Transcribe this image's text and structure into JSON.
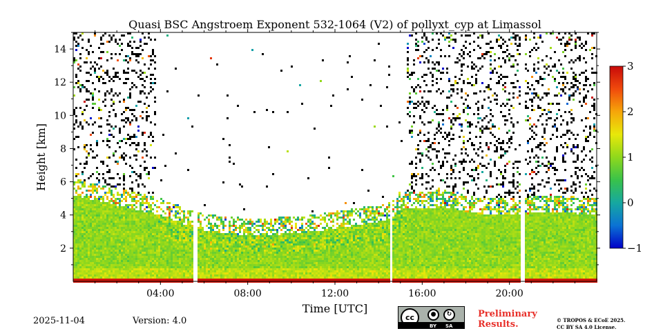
{
  "chart_data": {
    "type": "heatmap",
    "title": "Quasi BSC Angstroem Exponent 532-1064 (V2) of pollyxt_cyp at Limassol",
    "xlabel": "Time [UTC]",
    "ylabel": "Height [km]",
    "xlim_hours": [
      0,
      24
    ],
    "ylim_km": [
      0,
      15
    ],
    "x_ticks": [
      {
        "value": 4,
        "label": "04:00"
      },
      {
        "value": 8,
        "label": "08:00"
      },
      {
        "value": 12,
        "label": "12:00"
      },
      {
        "value": 16,
        "label": "16:00"
      },
      {
        "value": 20,
        "label": "20:00"
      }
    ],
    "y_ticks": [
      {
        "value": 2,
        "label": "2"
      },
      {
        "value": 4,
        "label": "4"
      },
      {
        "value": 6,
        "label": "6"
      },
      {
        "value": 8,
        "label": "8"
      },
      {
        "value": 10,
        "label": "10"
      },
      {
        "value": 12,
        "label": "12"
      },
      {
        "value": 14,
        "label": "14"
      }
    ],
    "colorbar": {
      "range": [
        -1,
        3
      ],
      "ticks": [
        {
          "value": -1,
          "label": "−1"
        },
        {
          "value": 0,
          "label": "0"
        },
        {
          "value": 1,
          "label": "1"
        },
        {
          "value": 2,
          "label": "2"
        },
        {
          "value": 3,
          "label": "3"
        }
      ],
      "colormap": [
        "#0000c8",
        "#0b73d4",
        "#16a8a0",
        "#39c24a",
        "#8fd81c",
        "#e8e80a",
        "#f6a60a",
        "#f04a0c",
        "#c80a0a"
      ]
    },
    "layer_top_km": [
      {
        "t": 0,
        "h": 5.6
      },
      {
        "t": 1,
        "h": 5.3
      },
      {
        "t": 2,
        "h": 5.0
      },
      {
        "t": 3,
        "h": 4.7
      },
      {
        "t": 4,
        "h": 4.4
      },
      {
        "t": 5,
        "h": 3.9
      },
      {
        "t": 6,
        "h": 3.5
      },
      {
        "t": 7,
        "h": 3.3
      },
      {
        "t": 8,
        "h": 3.2
      },
      {
        "t": 9,
        "h": 3.2
      },
      {
        "t": 10,
        "h": 3.3
      },
      {
        "t": 11,
        "h": 3.4
      },
      {
        "t": 12,
        "h": 3.6
      },
      {
        "t": 13,
        "h": 3.8
      },
      {
        "t": 14,
        "h": 4.0
      },
      {
        "t": 14.6,
        "h": 4.2
      },
      {
        "t": 15,
        "h": 4.8
      },
      {
        "t": 16,
        "h": 4.8
      },
      {
        "t": 17,
        "h": 4.9
      },
      {
        "t": 18,
        "h": 4.6
      },
      {
        "t": 19,
        "h": 4.4
      },
      {
        "t": 20,
        "h": 4.4
      },
      {
        "t": 21,
        "h": 4.5
      },
      {
        "t": 22,
        "h": 4.5
      },
      {
        "t": 23,
        "h": 4.5
      },
      {
        "t": 24,
        "h": 4.4
      }
    ],
    "typical_value_in_layer": 1.0,
    "daytime_noise_window_hours": [
      3.8,
      15.3
    ],
    "data_gaps_hours": [
      [
        5.5,
        5.7
      ],
      [
        14.5,
        14.65
      ],
      [
        20.5,
        20.7
      ]
    ]
  },
  "footer": {
    "date": "2025-11-04",
    "version": "Version: 4.0",
    "preliminary_line1": "Preliminary",
    "preliminary_line2": "Results.",
    "license_line1": "© TROPOS & ECoE 2025.",
    "license_line2": "CC BY SA 4.0 License.",
    "cc_badge": {
      "cc": "cc",
      "by": "BY",
      "sa": "SA"
    }
  }
}
